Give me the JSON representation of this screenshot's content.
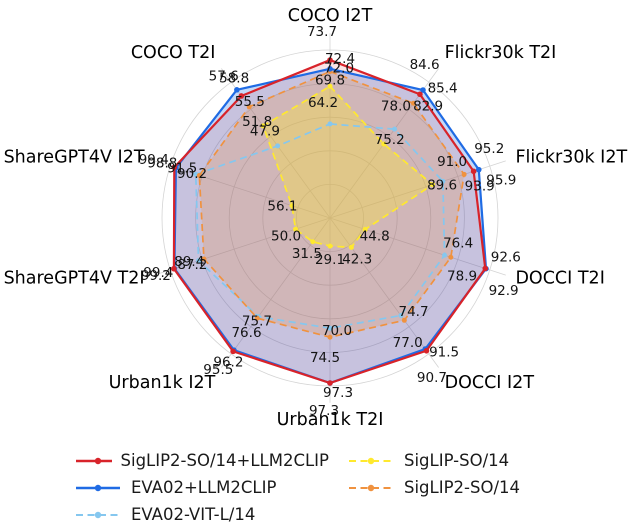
{
  "figure": {
    "background": "#ffffff",
    "type_note": "radar chart comparing CLIP models on retrieval benchmarks"
  },
  "chart_data": {
    "type": "radar",
    "categories": [
      "COCO I2T",
      "Flickr30k T2I",
      "Flickr30k I2T",
      "DOCCI T2I",
      "DOCCI I2T",
      "Urban1k T2I",
      "Urban1k I2T",
      "ShareGPT4V T2I",
      "ShareGPT4V I2T",
      "COCO T2I"
    ],
    "series": [
      {
        "name": "SigLIP2-SO/14+LLM2CLIP",
        "color": "#d8232a",
        "line": "solid",
        "fill_alpha": 0.12,
        "values": [
          73.7,
          84.6,
          95.2,
          92.6,
          91.5,
          97.3,
          96.2,
          99.4,
          99.4,
          57.6
        ]
      },
      {
        "name": "EVA02+LLM2CLIP",
        "color": "#1f6be4",
        "line": "solid",
        "fill_alpha": 0.26,
        "values": [
          72.4,
          85.4,
          95.9,
          92.9,
          90.7,
          97.3,
          95.5,
          99.2,
          98.8,
          58.8
        ]
      },
      {
        "name": "EVA02-VIT-L/14",
        "color": "#85c7ef",
        "line": "dashed",
        "fill_alpha": 0.0,
        "values": [
          64.2,
          78.0,
          91.0,
          76.4,
          74.7,
          70.0,
          75.7,
          89.4,
          91.5,
          47.9
        ]
      },
      {
        "name": "SigLIP-SO/14",
        "color": "#ffe92e",
        "line": "dashed",
        "fill_alpha": 0.34,
        "values": [
          69.8,
          75.2,
          89.6,
          44.8,
          42.3,
          29.1,
          31.5,
          50.0,
          56.1,
          51.8
        ]
      },
      {
        "name": "SigLIP2-SO/14",
        "color": "#f0923f",
        "line": "dashed",
        "fill_alpha": 0.24,
        "values": [
          72.0,
          82.9,
          93.9,
          78.9,
          77.0,
          74.5,
          76.6,
          87.2,
          90.2,
          55.5
        ]
      }
    ],
    "grid": true,
    "grid_color": "#d4d4d4",
    "value_label_decimals": 1,
    "legend_position": "bottom",
    "legend_columns": [
      [
        0,
        1,
        2
      ],
      [
        3,
        4
      ]
    ]
  }
}
